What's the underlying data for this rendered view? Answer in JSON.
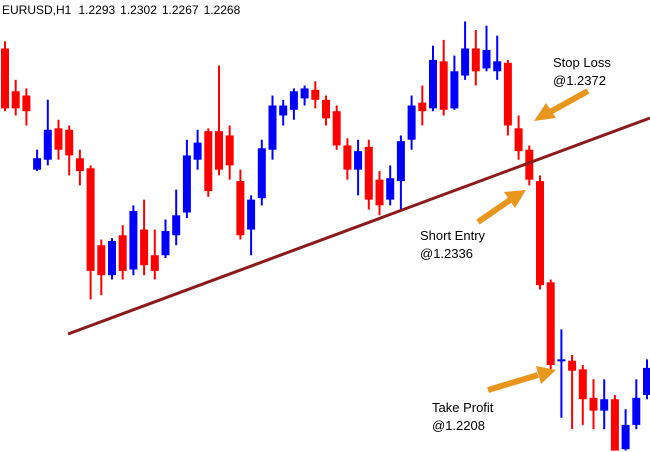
{
  "chart_data": {
    "type": "candlestick",
    "title": "EURUSD,H1",
    "header_values": [
      1.2293,
      1.2302,
      1.2267,
      1.2268
    ],
    "up_color": "#0000ff",
    "down_color": "#ff0000",
    "ylim": [
      1.2147,
      1.2464
    ],
    "open": [
      1.243,
      1.24,
      1.2397,
      1.2345,
      1.2352,
      1.2374,
      1.2373,
      1.2353,
      1.2346,
      1.2292,
      1.2271,
      1.2299,
      1.2275,
      1.2303,
      1.2285,
      1.2285,
      1.2299,
      1.2315,
      1.2352,
      1.2372,
      1.2372,
      1.2369,
      1.2337,
      1.2303,
      1.2325,
      1.2359,
      1.2383,
      1.2387,
      1.2395,
      1.2401,
      1.2394,
      1.2386,
      1.2362,
      1.2345,
      1.2361,
      1.2338,
      1.2324,
      1.2337,
      1.2366,
      1.2392,
      1.2388,
      1.2421,
      1.2388,
      1.2411,
      1.243,
      1.2416,
      1.2414,
      1.242,
      1.2374,
      1.2359,
      1.2337,
      1.2266,
      1.2211,
      1.2211,
      1.2205,
      1.2185,
      1.2176,
      1.2184,
      1.2149,
      1.2166,
      1.2187
    ],
    "high": [
      1.2435,
      1.2408,
      1.2402,
      1.2359,
      1.2394,
      1.238,
      1.2376,
      1.2359,
      1.2348,
      1.2296,
      1.2297,
      1.2306,
      1.232,
      1.2324,
      1.2303,
      1.231,
      1.2331,
      1.2366,
      1.2373,
      1.2374,
      1.2418,
      1.2376,
      1.2345,
      1.2327,
      1.2366,
      1.2397,
      1.2394,
      1.2402,
      1.2404,
      1.2407,
      1.2397,
      1.239,
      1.2367,
      1.2366,
      1.2366,
      1.2344,
      1.2348,
      1.2369,
      1.2397,
      1.2404,
      1.2432,
      1.2436,
      1.2425,
      1.2449,
      1.2443,
      1.2446,
      1.2439,
      1.2422,
      1.2383,
      1.2362,
      1.2341,
      1.2268,
      1.2233,
      1.2215,
      1.2208,
      1.2198,
      1.2198,
      1.2187,
      1.2177,
      1.2198,
      1.2212
    ],
    "low": [
      1.2386,
      1.2383,
      1.2376,
      1.2344,
      1.2348,
      1.2352,
      1.2341,
      1.2334,
      1.2254,
      1.2257,
      1.2268,
      1.2268,
      1.2271,
      1.2271,
      1.2268,
      1.2283,
      1.2292,
      1.2311,
      1.2345,
      1.2326,
      1.2341,
      1.2338,
      1.2296,
      1.2285,
      1.232,
      1.2352,
      1.2376,
      1.238,
      1.239,
      1.2388,
      1.2376,
      1.2359,
      1.2338,
      1.2327,
      1.2317,
      1.2313,
      1.232,
      1.2317,
      1.2359,
      1.2376,
      1.2386,
      1.2383,
      1.2387,
      1.2408,
      1.2404,
      1.2414,
      1.2408,
      1.2369,
      1.2352,
      1.2334,
      1.2261,
      1.2205,
      1.2171,
      1.2163,
      1.2166,
      1.2163,
      1.2163,
      1.2148,
      1.2148,
      1.2163,
      1.2184
    ],
    "close": [
      1.2388,
      1.2388,
      1.2386,
      1.2353,
      1.2373,
      1.2359,
      1.2355,
      1.2344,
      1.2274,
      1.2271,
      1.2295,
      1.2274,
      1.2316,
      1.2278,
      1.2274,
      1.2302,
      1.2313,
      1.2355,
      1.2364,
      1.233,
      1.2345,
      1.2348,
      1.2299,
      1.2324,
      1.236,
      1.239,
      1.239,
      1.24,
      1.2402,
      1.2394,
      1.2381,
      1.2362,
      1.2345,
      1.2358,
      1.2324,
      1.232,
      1.2339,
      1.2365,
      1.239,
      1.2386,
      1.2422,
      1.2387,
      1.2414,
      1.243,
      1.2414,
      1.2429,
      1.2421,
      1.2376,
      1.2358,
      1.2338,
      1.2264,
      1.2208,
      1.2212,
      1.2204,
      1.2184,
      1.2176,
      1.2184,
      1.2148,
      1.2166,
      1.2185,
      1.2206
    ],
    "annotations": [
      {
        "lines": [
          "Stop Loss",
          "@1.2372"
        ]
      },
      {
        "lines": [
          "Short Entry",
          "@1.2336"
        ]
      },
      {
        "lines": [
          "Take Profit",
          "@1.2208"
        ]
      }
    ]
  }
}
